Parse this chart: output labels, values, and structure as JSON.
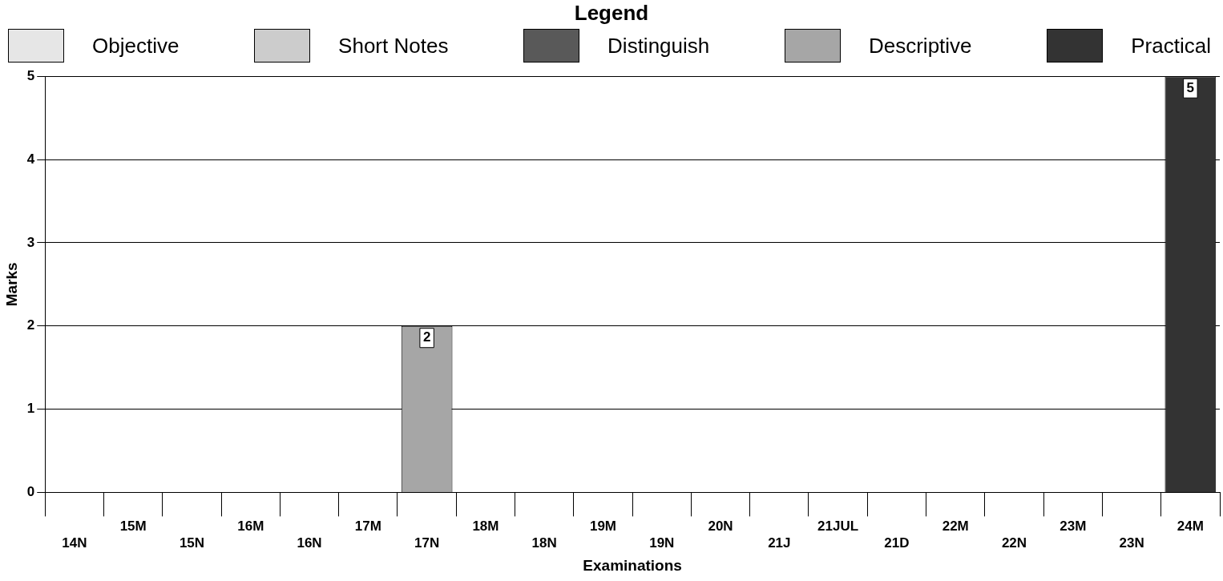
{
  "chart_data": {
    "type": "bar",
    "stacked": true,
    "legend_title": "Legend",
    "legend": "top",
    "xlabel": "Examinations",
    "ylabel": "Marks",
    "categories": [
      "14N",
      "15M",
      "15N",
      "16M",
      "16N",
      "17M",
      "17N",
      "18M",
      "18N",
      "19M",
      "19N",
      "20N",
      "21J",
      "21JUL",
      "21D",
      "22M",
      "22N",
      "23M",
      "23N",
      "24M"
    ],
    "series": [
      {
        "name": "Objective",
        "color": "#e6e6e6",
        "values": [
          null,
          null,
          null,
          null,
          null,
          null,
          null,
          null,
          null,
          null,
          null,
          null,
          null,
          null,
          null,
          null,
          null,
          null,
          null,
          null
        ]
      },
      {
        "name": "Short Notes",
        "color": "#cccccc",
        "values": [
          null,
          null,
          null,
          null,
          null,
          null,
          null,
          null,
          null,
          null,
          null,
          null,
          null,
          null,
          null,
          null,
          null,
          null,
          null,
          null
        ]
      },
      {
        "name": "Distinguish",
        "color": "#595959",
        "values": [
          null,
          null,
          null,
          null,
          null,
          null,
          null,
          null,
          null,
          null,
          null,
          null,
          null,
          null,
          null,
          null,
          null,
          null,
          null,
          null
        ]
      },
      {
        "name": "Descriptive",
        "color": "#a6a6a6",
        "values": [
          null,
          null,
          null,
          null,
          null,
          null,
          2,
          null,
          null,
          null,
          null,
          null,
          null,
          null,
          null,
          null,
          null,
          null,
          null,
          null
        ]
      },
      {
        "name": "Practical",
        "color": "#333333",
        "values": [
          null,
          null,
          null,
          null,
          null,
          null,
          null,
          null,
          null,
          null,
          null,
          null,
          null,
          null,
          null,
          null,
          null,
          null,
          null,
          5
        ]
      }
    ],
    "ylim": [
      0,
      5
    ],
    "yticks": [
      0,
      1,
      2,
      3,
      4,
      5
    ],
    "grid": "y",
    "data_labels": true
  }
}
